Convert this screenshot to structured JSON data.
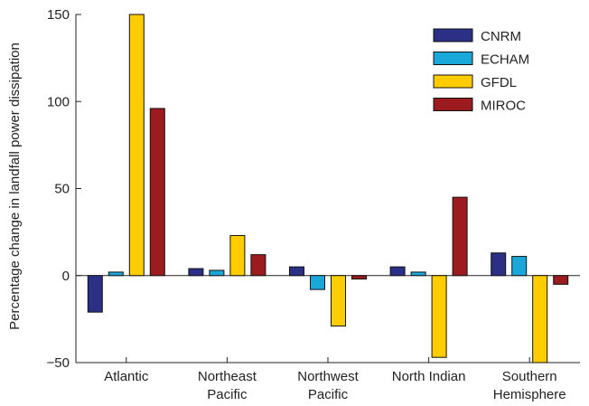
{
  "chart_data": {
    "type": "bar",
    "categories": [
      [
        "Atlantic"
      ],
      [
        "Northeast",
        "Pacific"
      ],
      [
        "Northwest",
        "Pacific"
      ],
      [
        "North Indian"
      ],
      [
        "Southern",
        "Hemisphere"
      ]
    ],
    "series": [
      {
        "name": "CNRM",
        "color": "#2b2f86",
        "values": [
          -21,
          4,
          5,
          5,
          13
        ]
      },
      {
        "name": "ECHAM",
        "color": "#1aa7d9",
        "values": [
          2,
          3,
          -8,
          2,
          11
        ]
      },
      {
        "name": "GFDL",
        "color": "#ffcc00",
        "values": [
          150,
          23,
          -29,
          -47,
          -50
        ]
      },
      {
        "name": "MIROC",
        "color": "#9b1b1f",
        "values": [
          96,
          12,
          -2,
          45,
          -5
        ]
      }
    ],
    "ylabel": "Percentage change in landfall power dissipation",
    "ylim": [
      -50,
      150
    ],
    "yticks": [
      -50,
      0,
      50,
      100,
      150
    ],
    "grid": false,
    "legend": "top-right"
  }
}
